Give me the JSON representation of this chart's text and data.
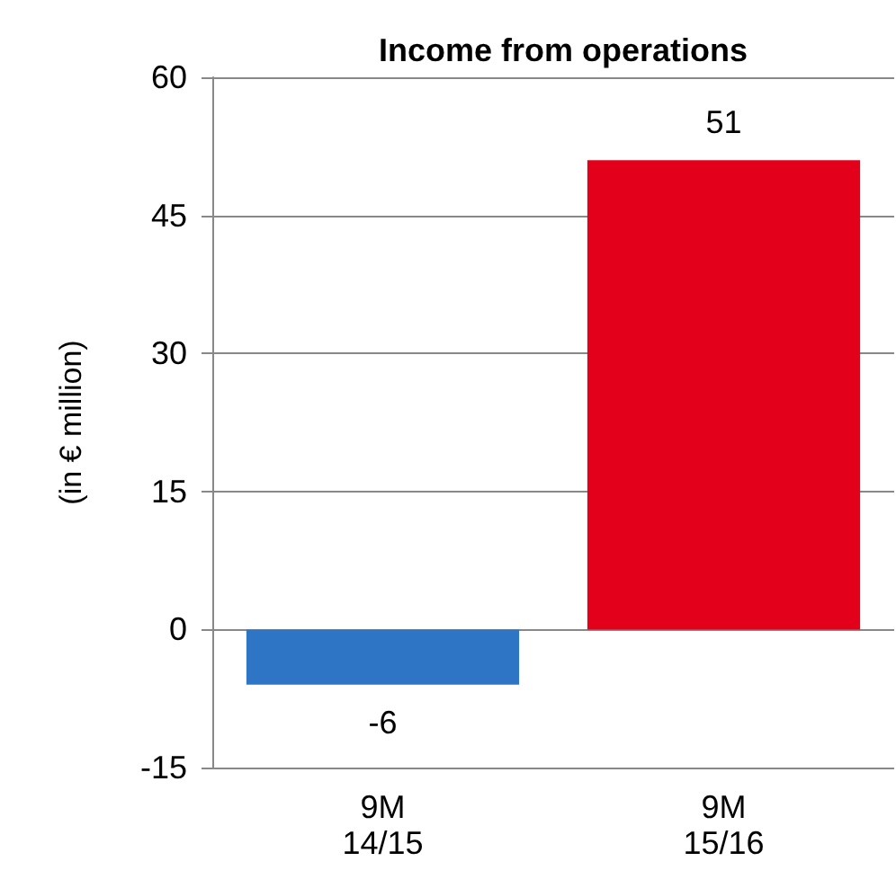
{
  "chart_data": {
    "type": "bar",
    "title": "Income from operations",
    "ylabel": "(in € million)",
    "categories": [
      "9M\n14/15",
      "9M\n15/16"
    ],
    "values": [
      -6,
      51
    ],
    "colors": [
      "#2e75c6",
      "#e2001a"
    ],
    "ylim": [
      -15,
      60
    ],
    "yticks": [
      -15,
      0,
      15,
      30,
      45,
      60
    ],
    "grid": "y",
    "data_labels": true
  }
}
